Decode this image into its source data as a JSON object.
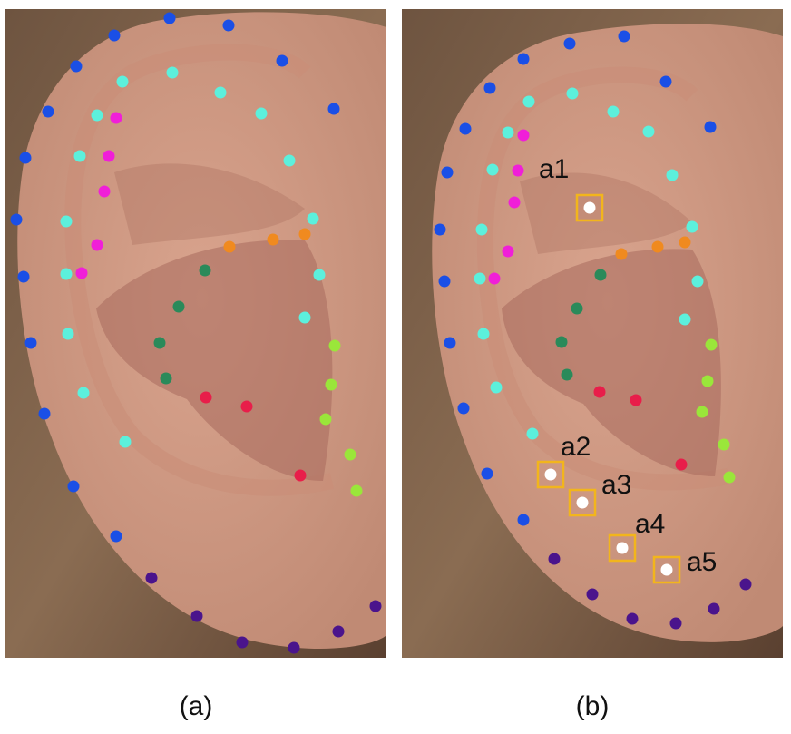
{
  "captions": {
    "a": "(a)",
    "b": "(b)"
  },
  "annotations": [
    "a1",
    "a2",
    "a3",
    "a4",
    "a5"
  ],
  "colors": {
    "outer_helix": "#1a4fe6",
    "inner_helix": "#5cf0dc",
    "magenta": "#f01fd8",
    "orange": "#f08a1f",
    "dark_green": "#2a8a5a",
    "red": "#e81e4a",
    "lime": "#9ae63a",
    "purple": "#4a148c",
    "highlight_box": "#f2b51c",
    "highlight_point": "#ffffff"
  }
}
